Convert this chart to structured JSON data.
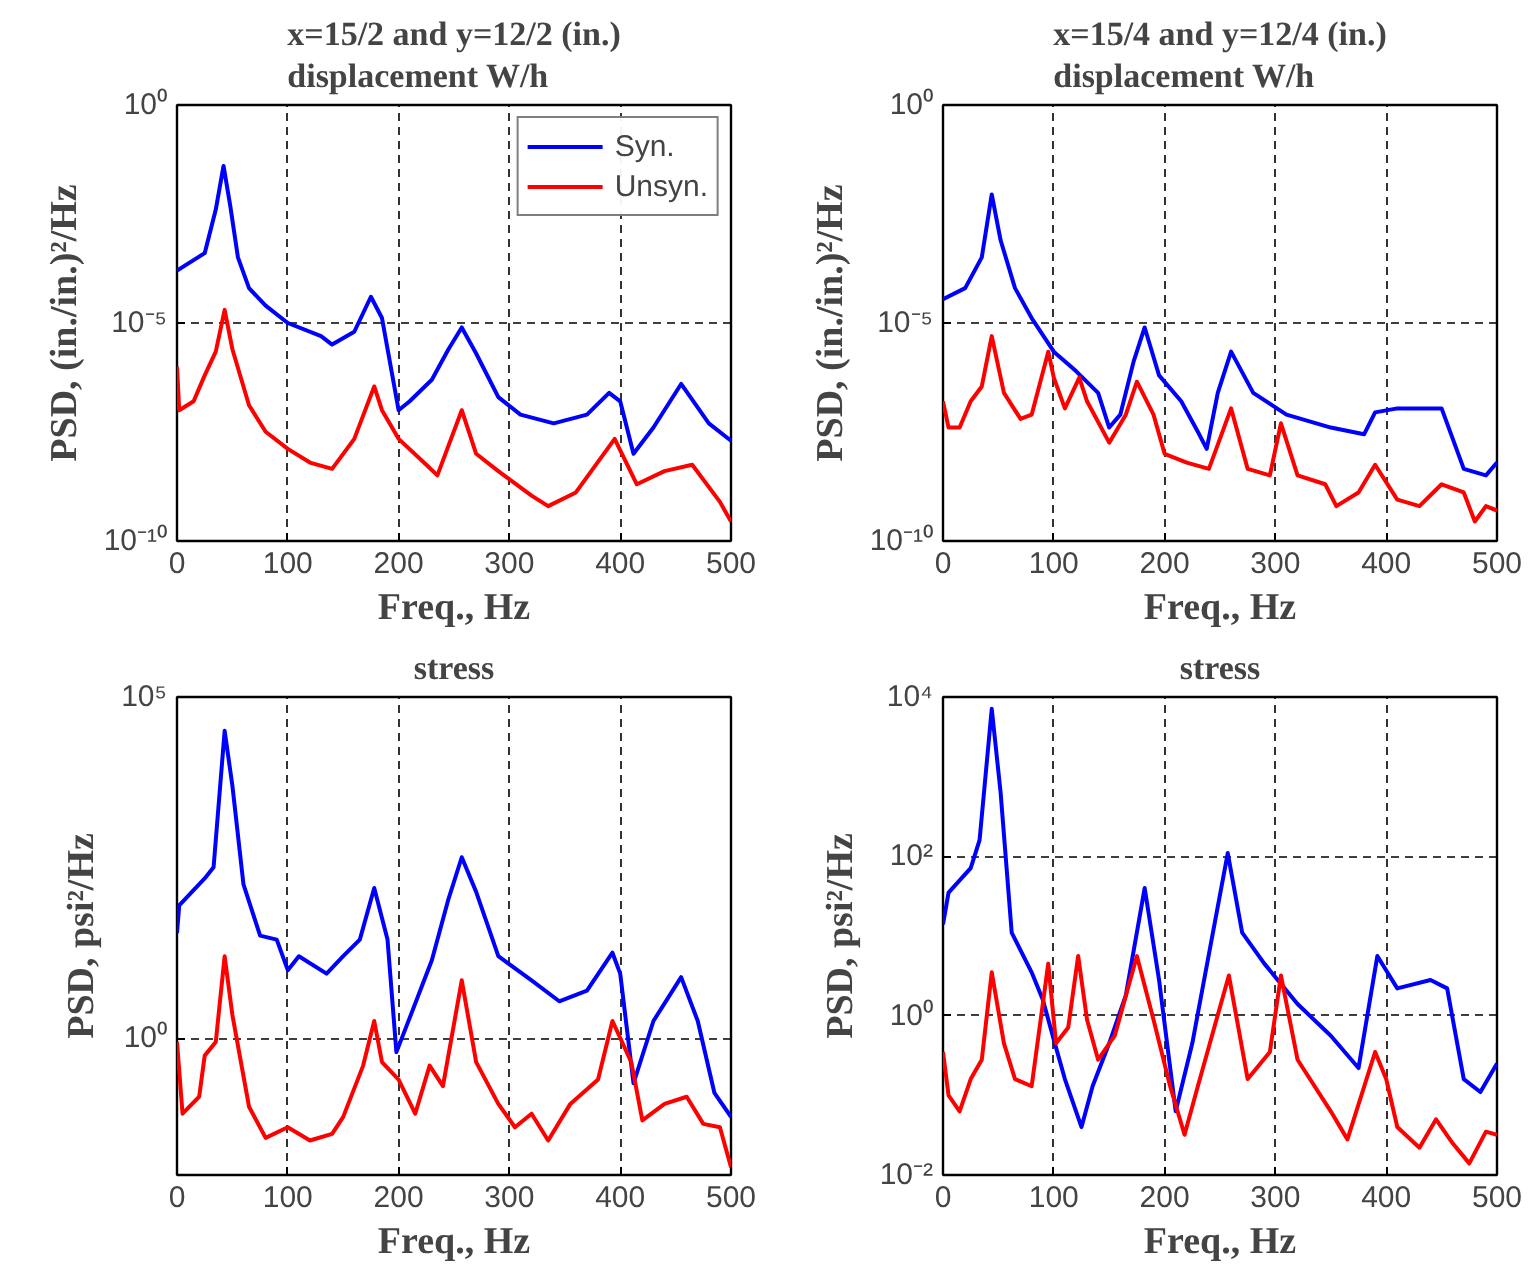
{
  "chart_data": [
    {
      "type": "line",
      "title": "x=15/2 and y=12/2 (in.)\ndisplacement W/h",
      "xlabel": "Freq., Hz",
      "ylabel": "PSD, (in./in.)²/Hz",
      "log": "y",
      "grid": true,
      "legend": "top right",
      "xlim": [
        0,
        500
      ],
      "xticks": [
        0,
        100,
        200,
        300,
        400,
        500
      ],
      "ylim": [
        1e-10,
        1
      ],
      "yticks": [
        {
          "value": 1e-10,
          "label": "10⁻¹⁰"
        },
        {
          "value": 1e-05,
          "label": "10⁻⁵"
        },
        {
          "value": 1,
          "label": "10⁰"
        }
      ],
      "series": [
        {
          "name": "Syn.",
          "color": "#0000ff",
          "x": [
            0,
            25,
            35,
            42,
            48,
            55,
            65,
            80,
            100,
            130,
            140,
            160,
            175,
            185,
            200,
            210,
            230,
            245,
            257,
            270,
            290,
            310,
            340,
            370,
            390,
            400,
            412,
            430,
            455,
            480,
            500
          ],
          "values": [
            0.00016,
            0.0004,
            0.004,
            0.04,
            0.005,
            0.00032,
            6.3e-05,
            2.5e-05,
            1e-05,
            5e-06,
            3.2e-06,
            6.3e-06,
            4e-05,
            1.3e-05,
            1e-07,
            1.6e-07,
            5e-07,
            2.5e-06,
            7.9e-06,
            2e-06,
            2e-07,
            7.9e-08,
            5e-08,
            7.9e-08,
            2.5e-07,
            1.6e-07,
            1e-08,
            4e-08,
            4e-07,
            5e-08,
            2e-08
          ]
        },
        {
          "name": "Unsyn.",
          "color": "#ff0000",
          "x": [
            0,
            2,
            15,
            25,
            35,
            43,
            50,
            65,
            80,
            100,
            120,
            140,
            160,
            178,
            185,
            200,
            225,
            235,
            257,
            270,
            290,
            320,
            335,
            360,
            395,
            415,
            440,
            465,
            490,
            500
          ],
          "values": [
            1e-06,
            1e-07,
            1.6e-07,
            6.3e-07,
            2.2e-06,
            2e-05,
            2.5e-06,
            1.3e-07,
            3.2e-08,
            1.3e-08,
            6.3e-09,
            4.5e-09,
            2.2e-08,
            3.5e-07,
            1e-07,
            2.2e-08,
            5.6e-09,
            3.2e-09,
            1e-07,
            1e-08,
            4e-09,
            1.1e-09,
            6.3e-10,
            1.3e-09,
            2.2e-08,
            2e-09,
            4e-09,
            5.6e-09,
            7.9e-10,
            2.8e-10
          ]
        }
      ]
    },
    {
      "type": "line",
      "title": "x=15/4 and y=12/4 (in.)\ndisplacement W/h",
      "xlabel": "Freq., Hz",
      "ylabel": "PSD, (in./in.)²/Hz",
      "log": "y",
      "grid": true,
      "xlim": [
        0,
        500
      ],
      "xticks": [
        0,
        100,
        200,
        300,
        400,
        500
      ],
      "ylim": [
        1e-10,
        1
      ],
      "yticks": [
        {
          "value": 1e-10,
          "label": "10⁻¹⁰"
        },
        {
          "value": 1e-05,
          "label": "10⁻⁵"
        },
        {
          "value": 1,
          "label": "10⁰"
        }
      ],
      "series": [
        {
          "color": "#0000ff",
          "x": [
            0,
            20,
            35,
            44,
            52,
            65,
            80,
            100,
            120,
            140,
            150,
            160,
            172,
            182,
            195,
            215,
            230,
            238,
            248,
            260,
            280,
            310,
            350,
            380,
            390,
            410,
            450,
            470,
            490,
            500
          ],
          "values": [
            3.5e-05,
            6.3e-05,
            0.00032,
            0.0089,
            0.00079,
            6.3e-05,
            1.3e-05,
            2.2e-06,
            7.9e-07,
            2.5e-07,
            4e-08,
            7.9e-08,
            1.3e-06,
            7.9e-06,
            6.3e-07,
            1.6e-07,
            3.2e-08,
            1.3e-08,
            2.5e-07,
            2.2e-06,
            2.5e-07,
            7.9e-08,
            4e-08,
            2.8e-08,
            8.9e-08,
            1.1e-07,
            1.1e-07,
            4.5e-09,
            3.2e-09,
            6.3e-09
          ]
        },
        {
          "color": "#ff0000",
          "x": [
            0,
            5,
            15,
            25,
            35,
            44,
            55,
            70,
            80,
            95,
            100,
            110,
            123,
            130,
            150,
            165,
            175,
            190,
            200,
            220,
            240,
            260,
            275,
            295,
            305,
            320,
            345,
            355,
            375,
            390,
            410,
            430,
            450,
            470,
            480,
            490,
            500
          ],
          "values": [
            1.6e-07,
            4e-08,
            4e-08,
            1.6e-07,
            3.5e-07,
            5e-06,
            2.5e-07,
            6.3e-08,
            7.9e-08,
            2.2e-06,
            5.6e-07,
            1.1e-07,
            5.6e-07,
            1.6e-07,
            1.8e-08,
            7.9e-08,
            4.5e-07,
            7.9e-08,
            1e-08,
            6.3e-09,
            4.5e-09,
            1.1e-07,
            4.5e-09,
            3.2e-09,
            5e-08,
            3.2e-09,
            2e-09,
            6.3e-10,
            1.3e-09,
            5.6e-09,
            8.9e-10,
            6.3e-10,
            2e-09,
            1.3e-09,
            2.8e-10,
            6.3e-10,
            5e-10
          ]
        }
      ]
    },
    {
      "type": "line",
      "title": "stress",
      "xlabel": "Freq., Hz",
      "ylabel": "PSD, psi²/Hz",
      "log": "y",
      "grid": true,
      "xlim": [
        0,
        500
      ],
      "xticks": [
        0,
        100,
        200,
        300,
        400,
        500
      ],
      "ylim": [
        0.01,
        100000
      ],
      "yticks": [
        {
          "value": 1,
          "label": "10⁰"
        },
        {
          "value": 100000,
          "label": "10⁵"
        }
      ],
      "series": [
        {
          "color": "#0000ff",
          "x": [
            0,
            2,
            25,
            33,
            43,
            50,
            60,
            75,
            90,
            100,
            110,
            135,
            150,
            165,
            178,
            190,
            198,
            210,
            230,
            245,
            257,
            270,
            290,
            320,
            345,
            370,
            393,
            400,
            412,
            430,
            455,
            470,
            485,
            500
          ],
          "values": [
            35,
            89,
            220,
            320,
            32000,
            5000,
            180,
            32,
            28,
            10,
            16,
            8.9,
            16,
            28,
            160,
            28,
            0.63,
            2,
            14,
            110,
            450,
            140,
            16,
            7.1,
            3.5,
            5,
            18,
            8.9,
            0.22,
            1.8,
            7.9,
            1.8,
            0.16,
            0.071
          ]
        },
        {
          "color": "#ff0000",
          "x": [
            0,
            5,
            20,
            25,
            35,
            43,
            50,
            65,
            80,
            100,
            120,
            140,
            150,
            168,
            178,
            185,
            200,
            215,
            228,
            240,
            257,
            270,
            290,
            305,
            320,
            335,
            355,
            380,
            393,
            410,
            420,
            440,
            460,
            475,
            490,
            500
          ],
          "values": [
            0.89,
            0.079,
            0.14,
            0.56,
            0.89,
            16,
            2.2,
            0.1,
            0.035,
            0.05,
            0.032,
            0.04,
            0.071,
            0.4,
            1.8,
            0.45,
            0.25,
            0.079,
            0.4,
            0.2,
            7.1,
            0.45,
            0.11,
            0.05,
            0.079,
            0.032,
            0.11,
            0.25,
            1.8,
            0.45,
            0.063,
            0.11,
            0.14,
            0.056,
            0.05,
            0.013
          ]
        }
      ]
    },
    {
      "type": "line",
      "title": "stress",
      "xlabel": "Freq., Hz",
      "ylabel": "PSD, psi²/Hz",
      "log": "y",
      "grid": true,
      "xlim": [
        0,
        500
      ],
      "xticks": [
        0,
        100,
        200,
        300,
        400,
        500
      ],
      "ylim": [
        0.01,
        10000
      ],
      "yticks": [
        {
          "value": 0.01,
          "label": "10⁻²"
        },
        {
          "value": 1,
          "label": "10⁰"
        },
        {
          "value": 100,
          "label": "10²"
        },
        {
          "value": 10000,
          "label": "10⁴"
        }
      ],
      "series": [
        {
          "color": "#0000ff",
          "x": [
            0,
            5,
            25,
            33,
            44,
            52,
            62,
            80,
            90,
            100,
            110,
            125,
            135,
            150,
            165,
            182,
            195,
            210,
            225,
            245,
            257,
            270,
            290,
            320,
            350,
            375,
            392,
            410,
            440,
            455,
            470,
            485,
            500
          ],
          "values": [
            14,
            35,
            71,
            160,
            7100,
            630,
            11,
            3.5,
            1.6,
            0.5,
            0.16,
            0.04,
            0.13,
            0.45,
            1.8,
            40,
            2.8,
            0.063,
            0.45,
            14,
            110,
            11,
            4.5,
            1.4,
            0.56,
            0.22,
            5.6,
            2.2,
            2.8,
            2.2,
            0.16,
            0.11,
            0.25
          ]
        },
        {
          "color": "#ff0000",
          "x": [
            0,
            5,
            15,
            25,
            35,
            44,
            55,
            65,
            80,
            95,
            102,
            113,
            122,
            130,
            140,
            155,
            175,
            190,
            205,
            218,
            230,
            258,
            275,
            295,
            305,
            320,
            350,
            365,
            390,
            400,
            410,
            430,
            445,
            460,
            475,
            490,
            500
          ],
          "values": [
            0.35,
            0.1,
            0.063,
            0.16,
            0.28,
            3.5,
            0.45,
            0.16,
            0.13,
            4.5,
            0.45,
            0.71,
            5.6,
            0.89,
            0.28,
            0.56,
            5.6,
            0.89,
            0.13,
            0.032,
            0.13,
            3.2,
            0.16,
            0.35,
            3.2,
            0.28,
            0.063,
            0.028,
            0.35,
            0.16,
            0.04,
            0.022,
            0.05,
            0.025,
            0.014,
            0.035,
            0.032
          ]
        }
      ]
    }
  ]
}
